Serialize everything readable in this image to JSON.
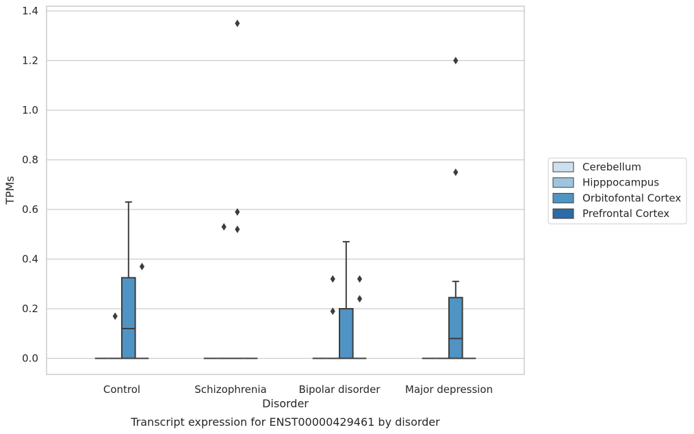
{
  "caption": "Transcript expression for ENST00000429461 by disorder",
  "chart_data": {
    "type": "box",
    "xlabel": "Disorder",
    "ylabel": "TPMs",
    "ylim": [
      -0.065,
      1.42
    ],
    "yticks": [
      "0.0",
      "0.2",
      "0.4",
      "0.6",
      "0.8",
      "1.0",
      "1.2",
      "1.4"
    ],
    "ytick_values": [
      0.0,
      0.2,
      0.4,
      0.6,
      0.8,
      1.0,
      1.2,
      1.4
    ],
    "categories": [
      "Control",
      "Schizophrenia",
      "Bipolar disorder",
      "Major depression"
    ],
    "grid": "horizontal",
    "legend_position": "right",
    "series": [
      {
        "name": "Cerebellum",
        "color": "#cde0ef",
        "boxes": [
          {
            "q1": 0,
            "median": 0,
            "q3": 0,
            "whisker_low": 0,
            "whisker_high": 0,
            "outliers": []
          },
          {
            "q1": 0,
            "median": 0,
            "q3": 0,
            "whisker_low": 0,
            "whisker_high": 0,
            "outliers": []
          },
          {
            "q1": 0,
            "median": 0,
            "q3": 0,
            "whisker_low": 0,
            "whisker_high": 0,
            "outliers": []
          },
          {
            "q1": 0,
            "median": 0,
            "q3": 0,
            "whisker_low": 0,
            "whisker_high": 0,
            "outliers": []
          }
        ]
      },
      {
        "name": "Hipppocampus",
        "color": "#9dc5e0",
        "boxes": [
          {
            "q1": 0,
            "median": 0,
            "q3": 0,
            "whisker_low": 0,
            "whisker_high": 0,
            "outliers": [
              0.17
            ]
          },
          {
            "q1": 0,
            "median": 0,
            "q3": 0,
            "whisker_low": 0,
            "whisker_high": 0,
            "outliers": [
              0.53
            ]
          },
          {
            "q1": 0,
            "median": 0,
            "q3": 0,
            "whisker_low": 0,
            "whisker_high": 0,
            "outliers": [
              0.32,
              0.19
            ]
          },
          {
            "q1": 0,
            "median": 0,
            "q3": 0,
            "whisker_low": 0,
            "whisker_high": 0,
            "outliers": []
          }
        ]
      },
      {
        "name": "Orbitofontal Cortex",
        "color": "#5094c4",
        "boxes": [
          {
            "q1": 0,
            "median": 0.12,
            "q3": 0.325,
            "whisker_low": 0,
            "whisker_high": 0.63,
            "outliers": []
          },
          {
            "q1": 0,
            "median": 0,
            "q3": 0,
            "whisker_low": 0,
            "whisker_high": 0,
            "outliers": [
              1.35,
              0.59,
              0.52
            ]
          },
          {
            "q1": 0,
            "median": 0,
            "q3": 0.2,
            "whisker_low": 0,
            "whisker_high": 0.47,
            "outliers": []
          },
          {
            "q1": 0,
            "median": 0.08,
            "q3": 0.245,
            "whisker_low": 0,
            "whisker_high": 0.31,
            "outliers": [
              1.2,
              0.75
            ]
          }
        ]
      },
      {
        "name": "Prefrontal Cortex",
        "color": "#2b6ba6",
        "boxes": [
          {
            "q1": 0,
            "median": 0,
            "q3": 0,
            "whisker_low": 0,
            "whisker_high": 0,
            "outliers": [
              0.37
            ]
          },
          {
            "q1": 0,
            "median": 0,
            "q3": 0,
            "whisker_low": 0,
            "whisker_high": 0,
            "outliers": []
          },
          {
            "q1": 0,
            "median": 0,
            "q3": 0,
            "whisker_low": 0,
            "whisker_high": 0,
            "outliers": [
              0.32,
              0.24
            ]
          },
          {
            "q1": 0,
            "median": 0,
            "q3": 0,
            "whisker_low": 0,
            "whisker_high": 0,
            "outliers": []
          }
        ]
      }
    ]
  },
  "legend": {
    "items": [
      {
        "label": "Cerebellum",
        "color": "#cde0ef"
      },
      {
        "label": "Hipppocampus",
        "color": "#9dc5e0"
      },
      {
        "label": "Orbitofontal Cortex",
        "color": "#5094c4"
      },
      {
        "label": "Prefrontal Cortex",
        "color": "#2b6ba6"
      }
    ]
  },
  "colors": {
    "grid": "#cccccc",
    "axes_edge": "#cccccc",
    "box_edge": "#3d3d3d",
    "outlier": "#3d3d3d"
  }
}
